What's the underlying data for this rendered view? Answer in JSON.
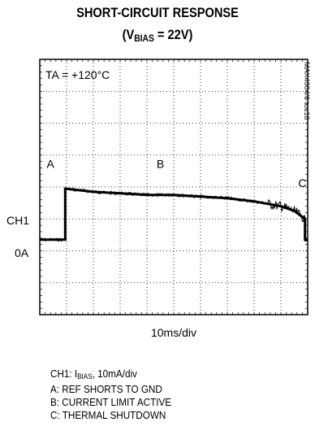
{
  "title_line1": "SHORT-CIRCUIT RESPONSE",
  "title_line2_prefix": "(V",
  "title_line2_sub": "BIAS",
  "title_line2_suffix": " = 22V)",
  "chart_data": {
    "type": "line",
    "annotation_temp": "TA = +120°C",
    "watermark": "MAX4004/6 toc13",
    "time_scale": "10ms/div",
    "channel_label": "CH1",
    "zero_label": "0A",
    "vertical_scale": "CH1: IBIAS, 10mA/div",
    "x_range_ms": [
      0,
      100
    ],
    "y_range_div": [
      -2,
      6
    ],
    "x_divisions": 10,
    "y_divisions": 8,
    "markers": [
      {
        "label": "A",
        "x_ms": 4,
        "y_div": 2.6
      },
      {
        "label": "B",
        "x_ms": 45,
        "y_div": 2.6
      },
      {
        "label": "C",
        "x_ms": 98,
        "y_div": 2.0
      }
    ],
    "series": [
      {
        "points_ms_div": [
          [
            0,
            0.35
          ],
          [
            9.5,
            0.35
          ],
          [
            9.5,
            1.95
          ],
          [
            20,
            1.85
          ],
          [
            30,
            1.8
          ],
          [
            40,
            1.75
          ],
          [
            50,
            1.75
          ],
          [
            60,
            1.7
          ],
          [
            70,
            1.65
          ],
          [
            80,
            1.55
          ],
          [
            90,
            1.4
          ],
          [
            95,
            1.25
          ],
          [
            99,
            1.0
          ],
          [
            99,
            0.35
          ],
          [
            100,
            0.35
          ]
        ]
      }
    ]
  },
  "legend_lines": [
    {
      "prefix": "CH1: I",
      "sub": "BIAS",
      "suffix": ", 10mA/div"
    },
    {
      "text": "A: REF SHORTS TO GND"
    },
    {
      "text": "B: CURRENT LIMIT ACTIVE"
    },
    {
      "text": "C: THERMAL SHUTDOWN"
    }
  ]
}
